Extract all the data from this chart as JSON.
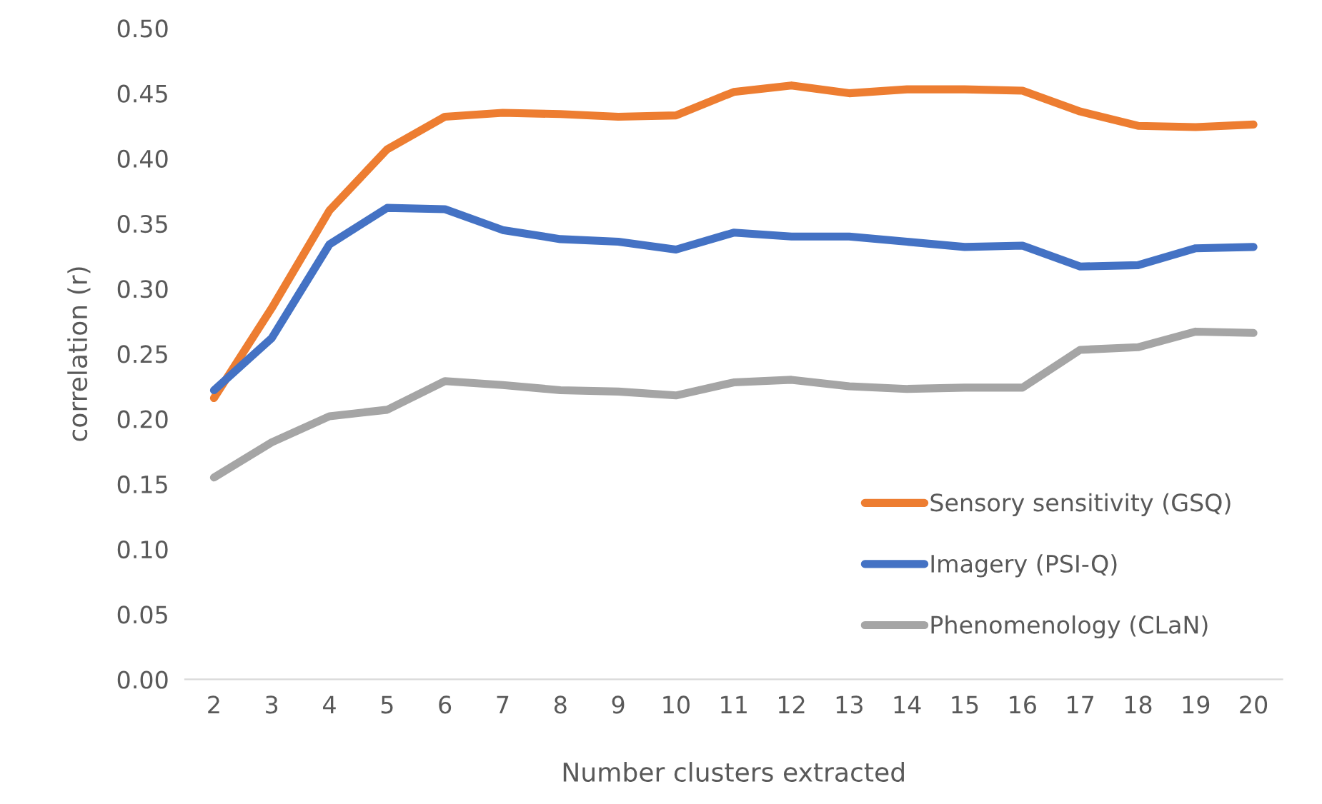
{
  "chart_data": {
    "type": "line",
    "xlabel": "Number clusters extracted",
    "ylabel": "correlation (r)",
    "categories": [
      "2",
      "3",
      "4",
      "5",
      "6",
      "7",
      "8",
      "9",
      "10",
      "11",
      "12",
      "13",
      "14",
      "15",
      "16",
      "17",
      "18",
      "19",
      "20"
    ],
    "series": [
      {
        "name": "Sensory sensitivity (GSQ)",
        "color": "#ed7d31",
        "values": [
          0.216,
          0.285,
          0.36,
          0.407,
          0.432,
          0.435,
          0.434,
          0.432,
          0.433,
          0.451,
          0.456,
          0.45,
          0.453,
          0.453,
          0.452,
          0.436,
          0.425,
          0.424,
          0.426
        ]
      },
      {
        "name": "Imagery (PSI-Q)",
        "color": "#4472c4",
        "values": [
          0.222,
          0.262,
          0.334,
          0.362,
          0.361,
          0.345,
          0.338,
          0.336,
          0.33,
          0.343,
          0.34,
          0.34,
          0.336,
          0.332,
          0.333,
          0.317,
          0.318,
          0.331,
          0.332
        ]
      },
      {
        "name": "Phenomenology (CLaN)",
        "color": "#a5a5a5",
        "values": [
          0.155,
          0.182,
          0.202,
          0.207,
          0.229,
          0.226,
          0.222,
          0.221,
          0.218,
          0.228,
          0.23,
          0.225,
          0.223,
          0.224,
          0.224,
          0.253,
          0.255,
          0.267,
          0.266
        ]
      }
    ],
    "ylim": [
      0,
      0.5
    ],
    "yticks": [
      {
        "value": 0,
        "label": "0.00"
      },
      {
        "value": 0.05,
        "label": "0.05"
      },
      {
        "value": 0.1,
        "label": "0.10"
      },
      {
        "value": 0.15,
        "label": "0.15"
      },
      {
        "value": 0.2,
        "label": "0.20"
      },
      {
        "value": 0.25,
        "label": "0.25"
      },
      {
        "value": 0.3,
        "label": "0.30"
      },
      {
        "value": 0.35,
        "label": "0.35"
      },
      {
        "value": 0.4,
        "label": "0.40"
      },
      {
        "value": 0.45,
        "label": "0.45"
      },
      {
        "value": 0.5,
        "label": "0.50"
      }
    ],
    "grid": false,
    "legend": "bottom right",
    "marker": "none",
    "line_style": "solid"
  }
}
